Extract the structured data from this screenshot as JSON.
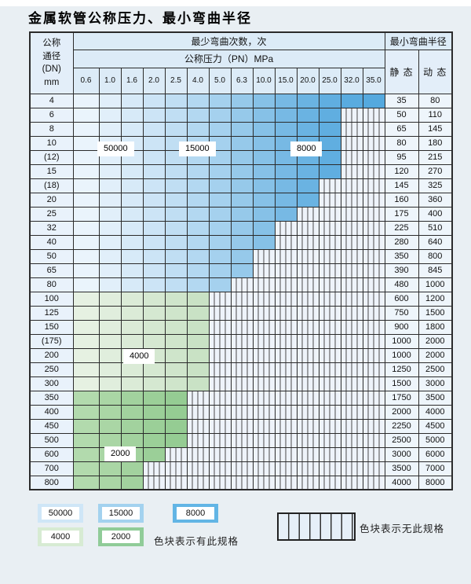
{
  "title": "金属软管公称压力、最小弯曲半径",
  "table": {
    "dn_header_lines": [
      "公称",
      "通径",
      "(DN)",
      "mm"
    ],
    "bend_cycles_header": "最少弯曲次数，次",
    "pressure_header": "公称压力（PN）MPa",
    "pressures": [
      "0.6",
      "1.0",
      "1.6",
      "2.0",
      "2.5",
      "4.0",
      "5.0",
      "6.3",
      "10.0",
      "15.0",
      "20.0",
      "25.0",
      "32.0",
      "35.0"
    ],
    "radius_header": "最小弯曲半径",
    "static_header": "静 态",
    "dynamic_header": "动 态",
    "zone_labels": [
      {
        "text": "50000"
      },
      {
        "text": "15000"
      },
      {
        "text": "8000"
      },
      {
        "text": "4000"
      },
      {
        "text": "2000"
      }
    ],
    "rows": [
      {
        "dn": "4",
        "colored": 14,
        "zone": "blue",
        "static": "35",
        "dynamic": "80"
      },
      {
        "dn": "6",
        "colored": 12,
        "zone": "blue",
        "static": "50",
        "dynamic": "110"
      },
      {
        "dn": "8",
        "colored": 12,
        "zone": "blue",
        "static": "65",
        "dynamic": "145"
      },
      {
        "dn": "10",
        "colored": 12,
        "zone": "blue",
        "static": "80",
        "dynamic": "180"
      },
      {
        "dn": "(12)",
        "colored": 12,
        "zone": "blue",
        "static": "95",
        "dynamic": "215"
      },
      {
        "dn": "15",
        "colored": 12,
        "zone": "blue",
        "static": "120",
        "dynamic": "270"
      },
      {
        "dn": "(18)",
        "colored": 11,
        "zone": "blue",
        "static": "145",
        "dynamic": "325"
      },
      {
        "dn": "20",
        "colored": 11,
        "zone": "blue",
        "static": "160",
        "dynamic": "360"
      },
      {
        "dn": "25",
        "colored": 10,
        "zone": "blue",
        "static": "175",
        "dynamic": "400"
      },
      {
        "dn": "32",
        "colored": 9,
        "zone": "blue",
        "static": "225",
        "dynamic": "510"
      },
      {
        "dn": "40",
        "colored": 9,
        "zone": "blue",
        "static": "280",
        "dynamic": "640"
      },
      {
        "dn": "50",
        "colored": 8,
        "zone": "blue",
        "static": "350",
        "dynamic": "800"
      },
      {
        "dn": "65",
        "colored": 8,
        "zone": "blue",
        "static": "390",
        "dynamic": "845"
      },
      {
        "dn": "80",
        "colored": 7,
        "zone": "blue",
        "static": "480",
        "dynamic": "1000"
      },
      {
        "dn": "100",
        "colored": 6,
        "zone": "green-light",
        "static": "600",
        "dynamic": "1200"
      },
      {
        "dn": "125",
        "colored": 6,
        "zone": "green-light",
        "static": "750",
        "dynamic": "1500"
      },
      {
        "dn": "150",
        "colored": 6,
        "zone": "green-light",
        "static": "900",
        "dynamic": "1800"
      },
      {
        "dn": "(175)",
        "colored": 6,
        "zone": "green-light",
        "static": "1000",
        "dynamic": "2000"
      },
      {
        "dn": "200",
        "colored": 6,
        "zone": "green-light",
        "static": "1000",
        "dynamic": "2000"
      },
      {
        "dn": "250",
        "colored": 6,
        "zone": "green-light",
        "static": "1250",
        "dynamic": "2500"
      },
      {
        "dn": "300",
        "colored": 6,
        "zone": "green-light",
        "static": "1500",
        "dynamic": "3000"
      },
      {
        "dn": "350",
        "colored": 5,
        "zone": "green-dark",
        "static": "1750",
        "dynamic": "3500"
      },
      {
        "dn": "400",
        "colored": 5,
        "zone": "green-dark",
        "static": "2000",
        "dynamic": "4000"
      },
      {
        "dn": "450",
        "colored": 5,
        "zone": "green-dark",
        "static": "2250",
        "dynamic": "4500"
      },
      {
        "dn": "500",
        "colored": 5,
        "zone": "green-dark",
        "static": "2500",
        "dynamic": "5000"
      },
      {
        "dn": "600",
        "colored": 4,
        "zone": "green-dark",
        "static": "3000",
        "dynamic": "6000"
      },
      {
        "dn": "700",
        "colored": 3,
        "zone": "green-dark",
        "static": "3500",
        "dynamic": "7000"
      },
      {
        "dn": "800",
        "colored": 3,
        "zone": "green-dark",
        "static": "4000",
        "dynamic": "8000"
      }
    ]
  },
  "legend": {
    "spec_items": [
      {
        "label": "50000",
        "color": "#cfe6f7"
      },
      {
        "label": "15000",
        "color": "#a3d2ef"
      },
      {
        "label": "8000",
        "color": "#62b5e5"
      },
      {
        "label": "4000",
        "color": "#d7ebd3"
      },
      {
        "label": "2000",
        "color": "#90cc98"
      }
    ],
    "has_spec_text": "色块表示有此规格",
    "no_spec_text": "色块表示无此规格"
  },
  "colors": {
    "blue_cols": [
      "#eaf4fc",
      "#e1effa",
      "#d7eaf8",
      "#cce4f6",
      "#c0def3",
      "#b3d8f1",
      "#a5d1ee",
      "#96c9ea",
      "#86c1e7",
      "#77b9e4",
      "#6ab3e2",
      "#60aee0",
      "#59abdf",
      "#55a9de"
    ],
    "green_light_cols": [
      "#e6f1e2",
      "#e0eedd",
      "#dbebd7",
      "#d5e8d1",
      "#cfe5cb",
      "#c9e2c5"
    ],
    "green_dark_cols": [
      "#b2daad",
      "#aad6a5",
      "#a2d29e",
      "#9bcf98",
      "#95cc93"
    ]
  }
}
